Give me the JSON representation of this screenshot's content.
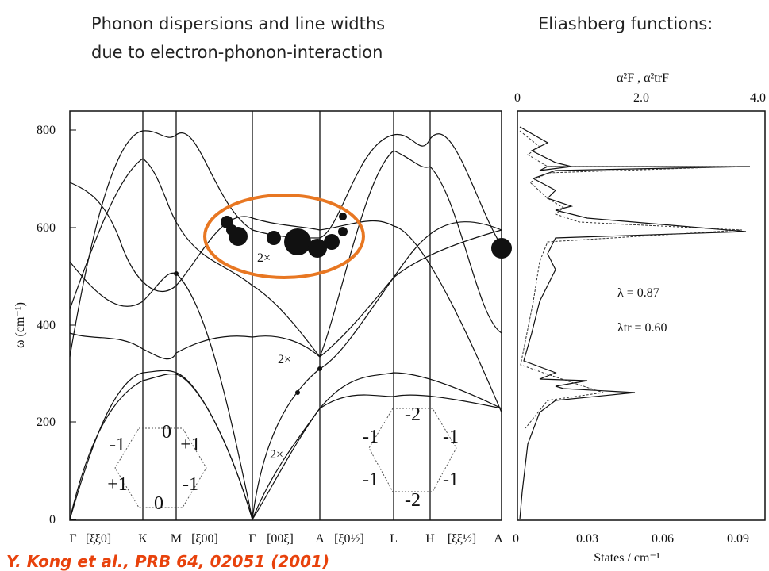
{
  "title": [
    "Phonon dispersions  and line widths",
    "due to electron-phonon-interaction"
  ],
  "right_title": "Eliashberg functions:",
  "left_panel": {
    "y_label": "ω (cm⁻¹)",
    "y_ticks": [
      "800",
      "600",
      "400",
      "200",
      "0"
    ],
    "x_ticks": [
      "Γ",
      "[ξξ0]",
      "K",
      "M",
      "[ξ00]",
      "Γ",
      "[00ξ]",
      "A",
      "[ξ0½]",
      "L",
      "H",
      "[ξξ½]",
      "A"
    ],
    "annotations": [
      "2×",
      "2×",
      "2×"
    ],
    "hexagon_left": [
      "0",
      "-1",
      "+1",
      "+1",
      "-1",
      "0"
    ],
    "hexagon_right": [
      "-2",
      "-1",
      "-1",
      "-1",
      "-1",
      "-2"
    ]
  },
  "right_panel": {
    "top_label": "α²F , α²trF",
    "top_ticks": [
      "0",
      "2.0",
      "4.0"
    ],
    "bottom_ticks": [
      "0",
      "0.03",
      "0.06",
      "0.09"
    ],
    "bottom_label": "States / cm⁻¹",
    "lambda": "λ = 0.87",
    "lambda_tr": "λtr = 0.60"
  },
  "citation": "Y. Kong et al., PRB 64, 02051 (2001)"
}
